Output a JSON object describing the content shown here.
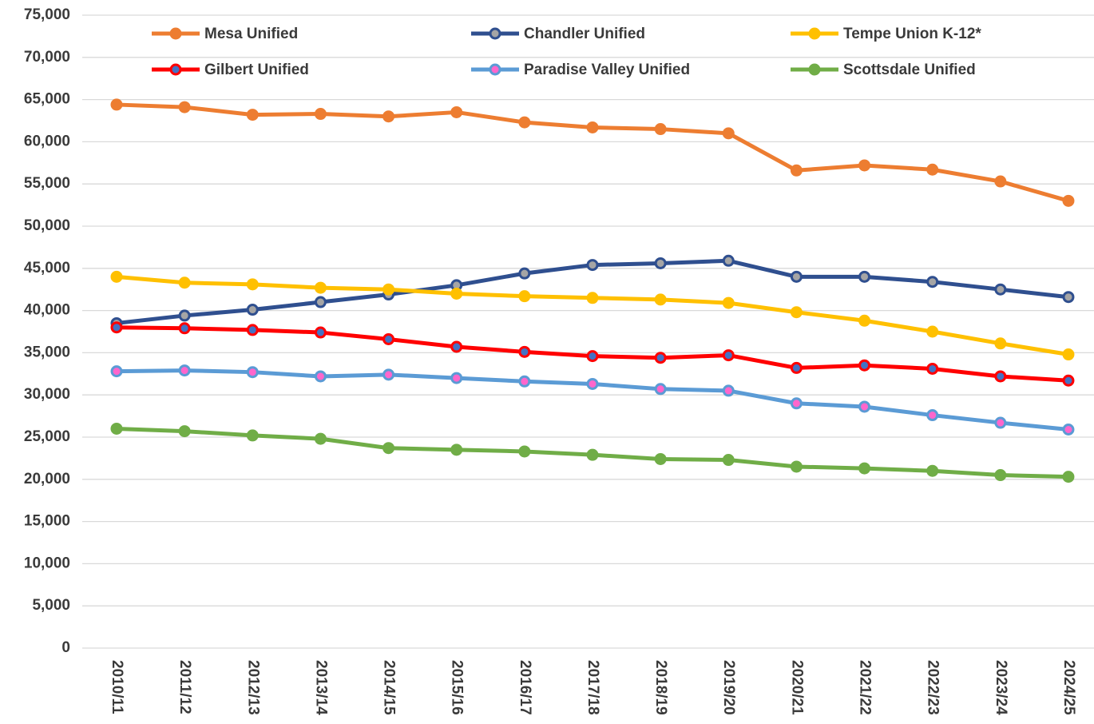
{
  "chart_data": {
    "type": "line",
    "categories": [
      "2010/11",
      "2011/12",
      "2012/13",
      "2013/14",
      "2014/15",
      "2015/16",
      "2016/17",
      "2017/18",
      "2018/19",
      "2019/20",
      "2020/21",
      "2021/22",
      "2022/23",
      "2023/24",
      "2024/25"
    ],
    "series": [
      {
        "name": "Mesa Unified",
        "color": "#ed7d31",
        "marker_color": "#ed7d31",
        "values": [
          64400,
          64100,
          63200,
          63300,
          63000,
          63500,
          62300,
          61700,
          61500,
          61000,
          56600,
          57200,
          56700,
          55300,
          53000
        ]
      },
      {
        "name": "Chandler Unified",
        "color": "#2f4f8f",
        "marker_color": "#a5a5a5",
        "values": [
          38500,
          39400,
          40100,
          41000,
          41900,
          43000,
          44400,
          45400,
          45600,
          45900,
          44000,
          44000,
          43400,
          42500,
          41600
        ]
      },
      {
        "name": "Tempe Union K-12*",
        "color": "#ffc000",
        "marker_color": "#ffc000",
        "values": [
          44000,
          43300,
          43100,
          42700,
          42500,
          42000,
          41700,
          41500,
          41300,
          40900,
          39800,
          38800,
          37500,
          36100,
          34800
        ]
      },
      {
        "name": "Gilbert Unified",
        "color": "#ff0000",
        "marker_color": "#4472c4",
        "values": [
          38000,
          37900,
          37700,
          37400,
          36600,
          35700,
          35100,
          34600,
          34400,
          34700,
          33200,
          33500,
          33100,
          32200,
          31700
        ]
      },
      {
        "name": "Paradise Valley Unified",
        "color": "#5b9bd5",
        "marker_color": "#ff66cc",
        "values": [
          32800,
          32900,
          32700,
          32200,
          32400,
          32000,
          31600,
          31300,
          30700,
          30500,
          29000,
          28600,
          27600,
          26700,
          25900
        ]
      },
      {
        "name": "Scottsdale Unified",
        "color": "#70ad47",
        "marker_color": "#70ad47",
        "values": [
          26000,
          25700,
          25200,
          24800,
          23700,
          23500,
          23300,
          22900,
          22400,
          22300,
          21500,
          21300,
          21000,
          20500,
          20300
        ]
      }
    ],
    "ylim": [
      0,
      75000
    ],
    "yticks": [
      0,
      {
        "value": 5000,
        "label": "5,000"
      },
      {
        "value": 10000,
        "label": "10,000"
      },
      {
        "value": 15000,
        "label": "15,000"
      },
      {
        "value": 20000,
        "label": "20,000"
      },
      {
        "value": 25000,
        "label": "25,000"
      },
      {
        "value": 30000,
        "label": "30,000"
      },
      {
        "value": 35000,
        "label": "35,000"
      },
      {
        "value": 40000,
        "label": "40,000"
      },
      {
        "value": 45000,
        "label": "45,000"
      },
      {
        "value": 50000,
        "label": "50,000"
      },
      {
        "value": 55000,
        "label": "55,000"
      },
      {
        "value": 60000,
        "label": "60,000"
      },
      {
        "value": 65000,
        "label": "65,000"
      },
      {
        "value": 70000,
        "label": "70,000"
      },
      {
        "value": 75000,
        "label": "75,000"
      }
    ],
    "grid": true,
    "legend": "top"
  }
}
